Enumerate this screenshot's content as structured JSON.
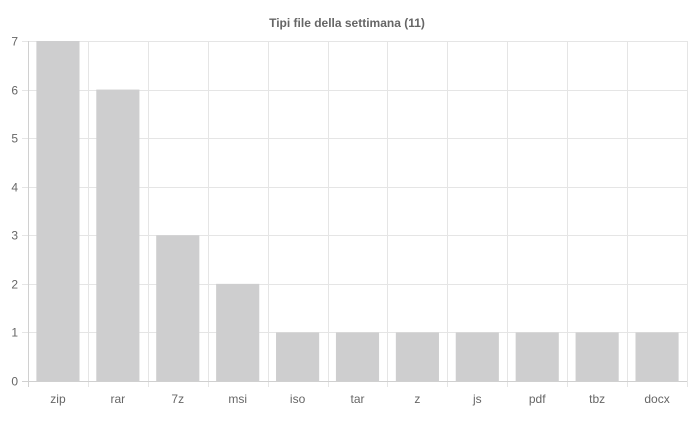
{
  "chart_data": {
    "type": "bar",
    "title": "Tipi file della settimana (11)",
    "categories": [
      "zip",
      "rar",
      "7z",
      "msi",
      "iso",
      "tar",
      "z",
      "js",
      "pdf",
      "tbz",
      "docx"
    ],
    "values": [
      7,
      6,
      3,
      2,
      1,
      1,
      1,
      1,
      1,
      1,
      1
    ],
    "xlabel": "",
    "ylabel": "",
    "ylim": [
      0,
      7
    ],
    "yticks": [
      0,
      1,
      2,
      3,
      4,
      5,
      6,
      7
    ],
    "grid": true,
    "legend": "none",
    "colors": {
      "bar": "#cececf",
      "grid": "#e5e5e5",
      "axis": "#d0d0d0",
      "text": "#666666"
    }
  }
}
